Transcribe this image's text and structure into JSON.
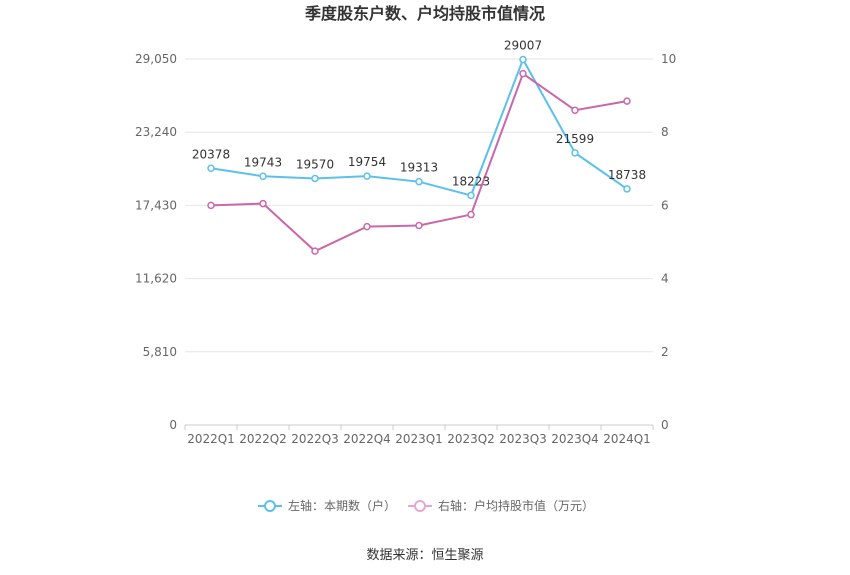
{
  "chart_data": {
    "type": "line",
    "title": "季度股东户数、户均持股市值情况",
    "categories": [
      "2022Q1",
      "2022Q2",
      "2022Q3",
      "2022Q4",
      "2023Q1",
      "2023Q2",
      "2023Q3",
      "2023Q4",
      "2024Q1"
    ],
    "left_axis": {
      "ticks": [
        "0",
        "5,810",
        "11,620",
        "17,430",
        "23,240",
        "29,050"
      ],
      "ylim": [
        0,
        29050
      ]
    },
    "right_axis": {
      "ticks": [
        "0",
        "2",
        "4",
        "6",
        "8",
        "10"
      ],
      "ylim": [
        0,
        10
      ]
    },
    "series": [
      {
        "name": "左轴：本期数（户）",
        "axis": "left",
        "color": "#5bc0eb",
        "values": [
          20378,
          19743,
          19570,
          19754,
          19313,
          18223,
          29007,
          21599,
          18738
        ],
        "labels": [
          "20378",
          "19743",
          "19570",
          "19754",
          "19313",
          "18223",
          "29007",
          "21599",
          "18738"
        ]
      },
      {
        "name": "右轴：户均持股市值（万元）",
        "axis": "right",
        "color": "#cc66aa",
        "values": [
          6.0,
          6.05,
          4.75,
          5.42,
          5.45,
          5.75,
          9.6,
          8.6,
          8.85
        ]
      }
    ],
    "grid": true,
    "legend_position": "bottom"
  },
  "source": "数据来源：恒生聚源"
}
